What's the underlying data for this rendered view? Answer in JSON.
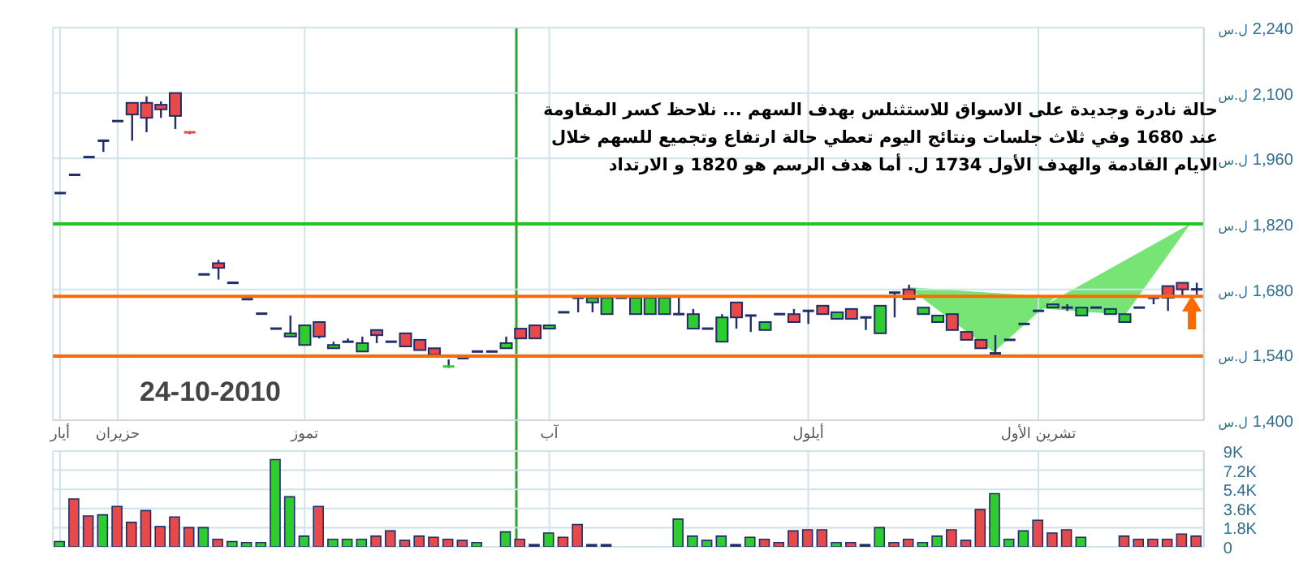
{
  "chart_data": [
    {
      "type": "candlestick",
      "categories": [
        "أيار",
        null,
        null,
        null,
        "حزيران",
        null,
        null,
        null,
        null,
        null,
        null,
        null,
        null,
        null,
        null,
        null,
        null,
        "تموز",
        null,
        null,
        null,
        null,
        null,
        null,
        null,
        null,
        null,
        null,
        null,
        null,
        null,
        null,
        null,
        null,
        "آب",
        null,
        null,
        null,
        null,
        null,
        null,
        null,
        null,
        null,
        null,
        null,
        null,
        null,
        null,
        null,
        null,
        null,
        "أيلول",
        null,
        null,
        null,
        null,
        null,
        null,
        null,
        null,
        null,
        null,
        null,
        null,
        null,
        null,
        null,
        "تشرين الأول",
        null,
        null,
        null,
        null,
        null,
        null,
        null,
        null,
        null,
        null,
        null
      ],
      "ohlc": [
        [
          1886,
          1886,
          1886,
          1886
        ],
        [
          1925,
          1925,
          1925,
          1925
        ],
        [
          1963,
          1963,
          1963,
          1963
        ],
        [
          1998,
          1998,
          1974,
          1998
        ],
        [
          2040,
          2040,
          2040,
          2040
        ],
        [
          2079,
          2079,
          1998,
          2054
        ],
        [
          2079,
          2093,
          2016,
          2047
        ],
        [
          2075,
          2082,
          2047,
          2065
        ],
        [
          2100,
          2100,
          2023,
          2051
        ],
        [
          2016,
          2016,
          2012,
          2012
        ],
        [
          1712,
          1712,
          1712,
          1712
        ],
        [
          1736,
          1743,
          1701,
          1726
        ],
        [
          1694,
          1694,
          1694,
          1694
        ],
        [
          1659,
          1659,
          1659,
          1659
        ],
        [
          1628,
          1628,
          1628,
          1628
        ],
        [
          1596,
          1596,
          1596,
          1596
        ],
        [
          1579,
          1624,
          1579,
          1586
        ],
        [
          1561,
          1603,
          1561,
          1603
        ],
        [
          1610,
          1610,
          1575,
          1579
        ],
        [
          1554,
          1568,
          1554,
          1561
        ],
        [
          1568,
          1575,
          1568,
          1568
        ],
        [
          1547,
          1579,
          1547,
          1565
        ],
        [
          1593,
          1593,
          1565,
          1582
        ],
        [
          1568,
          1568,
          1568,
          1568
        ],
        [
          1586,
          1586,
          1558,
          1558
        ],
        [
          1572,
          1572,
          1550,
          1550
        ],
        [
          1554,
          1554,
          1540,
          1540
        ],
        [
          1512,
          1530,
          1512,
          1515
        ],
        [
          1533,
          1533,
          1533,
          1533
        ],
        [
          1547,
          1547,
          1547,
          1547
        ],
        [
          1547,
          1547,
          1547,
          1547
        ],
        [
          1554,
          1579,
          1554,
          1565
        ],
        [
          1596,
          1596,
          1575,
          1575
        ],
        [
          1603,
          1603,
          1575,
          1575
        ],
        [
          1596,
          1603,
          1596,
          1603
        ],
        [
          1631,
          1631,
          1631,
          1631
        ],
        [
          1662,
          1662,
          1631,
          1662
        ],
        [
          1652,
          1662,
          1631,
          1662
        ],
        [
          1627,
          1662,
          1627,
          1662
        ],
        [
          1662,
          1662,
          1662,
          1662
        ],
        [
          1627,
          1662,
          1627,
          1662
        ],
        [
          1627,
          1662,
          1627,
          1662
        ],
        [
          1627,
          1662,
          1627,
          1662
        ],
        [
          1627,
          1662,
          1627,
          1627
        ],
        [
          1596,
          1638,
          1596,
          1627
        ],
        [
          1596,
          1596,
          1596,
          1596
        ],
        [
          1568,
          1627,
          1568,
          1620
        ],
        [
          1652,
          1652,
          1596,
          1620
        ],
        [
          1624,
          1624,
          1589,
          1624
        ],
        [
          1593,
          1610,
          1593,
          1610
        ],
        [
          1627,
          1627,
          1627,
          1627
        ],
        [
          1627,
          1638,
          1610,
          1610
        ],
        [
          1634,
          1634,
          1606,
          1634
        ],
        [
          1645,
          1645,
          1627,
          1627
        ],
        [
          1617,
          1631,
          1617,
          1631
        ],
        [
          1638,
          1638,
          1617,
          1617
        ],
        [
          1620,
          1620,
          1593,
          1620
        ],
        [
          1586,
          1645,
          1586,
          1645
        ],
        [
          1673,
          1673,
          1620,
          1673
        ],
        [
          1680,
          1690,
          1659,
          1659
        ],
        [
          1627,
          1641,
          1627,
          1641
        ],
        [
          1610,
          1624,
          1610,
          1624
        ],
        [
          1627,
          1627,
          1593,
          1593
        ],
        [
          1589,
          1589,
          1572,
          1572
        ],
        [
          1572,
          1572,
          1554,
          1554
        ],
        [
          1543,
          1582,
          1543,
          1543
        ],
        [
          1572,
          1572,
          1572,
          1572
        ],
        [
          1606,
          1606,
          1606,
          1606
        ],
        [
          1634,
          1634,
          1634,
          1634
        ],
        [
          1641,
          1648,
          1641,
          1648
        ],
        [
          1641,
          1648,
          1634,
          1641
        ],
        [
          1624,
          1641,
          1624,
          1641
        ],
        [
          1641,
          1641,
          1641,
          1641
        ],
        [
          1627,
          1638,
          1627,
          1638
        ],
        [
          1610,
          1627,
          1610,
          1627
        ],
        [
          1641,
          1641,
          1641,
          1641
        ],
        [
          1662,
          1662,
          1648,
          1662
        ],
        [
          1687,
          1687,
          1634,
          1662
        ],
        [
          1694,
          1694,
          1662,
          1680
        ],
        [
          1680,
          1694,
          1669,
          1680
        ]
      ],
      "colors": [
        "#1f2d6b",
        "#1f2d6b",
        "#1f2d6b",
        "#1f2d6b",
        "#1f2d6b",
        "#e84a4a",
        "#e84a4a",
        "#e84a4a",
        "#e84a4a",
        "#e84a4a",
        "#1f2d6b",
        "#e84a4a",
        "#1f2d6b",
        "#1f2d6b",
        "#1f2d6b",
        "#1f2d6b",
        "#2ecc2e",
        "#2ecc2e",
        "#e84a4a",
        "#2ecc2e",
        "#1f2d6b",
        "#2ecc2e",
        "#e84a4a",
        "#1f2d6b",
        "#e84a4a",
        "#e84a4a",
        "#e84a4a",
        "#2ecc2e",
        "#1f2d6b",
        "#1f2d6b",
        "#1f2d6b",
        "#2ecc2e",
        "#e84a4a",
        "#e84a4a",
        "#2ecc2e",
        "#1f2d6b",
        "#1f2d6b",
        "#2ecc2e",
        "#2ecc2e",
        "#1f2d6b",
        "#2ecc2e",
        "#2ecc2e",
        "#2ecc2e",
        "#1f2d6b",
        "#2ecc2e",
        "#1f2d6b",
        "#2ecc2e",
        "#e84a4a",
        "#1f2d6b",
        "#2ecc2e",
        "#1f2d6b",
        "#e84a4a",
        "#1f2d6b",
        "#e84a4a",
        "#2ecc2e",
        "#e84a4a",
        "#1f2d6b",
        "#2ecc2e",
        "#1f2d6b",
        "#e84a4a",
        "#2ecc2e",
        "#2ecc2e",
        "#e84a4a",
        "#e84a4a",
        "#e84a4a",
        "#1f2d6b",
        "#1f2d6b",
        "#1f2d6b",
        "#1f2d6b",
        "#2ecc2e",
        "#1f2d6b",
        "#2ecc2e",
        "#1f2d6b",
        "#2ecc2e",
        "#2ecc2e",
        "#1f2d6b",
        "#1f2d6b",
        "#e84a4a",
        "#e84a4a",
        "#1f2d6b"
      ],
      "ylim": [
        1400,
        2240
      ],
      "yticks": [
        {
          "value": 1400,
          "label": "1,400"
        },
        {
          "value": 1540,
          "label": "1,540"
        },
        {
          "value": 1680,
          "label": "1,680"
        },
        {
          "value": 1820,
          "label": "1,820"
        },
        {
          "value": 1960,
          "label": "1,960"
        },
        {
          "value": 2100,
          "label": "2,100"
        },
        {
          "value": 2240,
          "label": "2,240"
        }
      ],
      "ylabel": "ل.س",
      "grid": true,
      "ref_lines": [
        {
          "axis": "y",
          "value": 1820,
          "color": "#22c422"
        },
        {
          "axis": "y",
          "value": 1665,
          "color": "#ff6a00"
        },
        {
          "axis": "y",
          "value": 1537,
          "color": "#ff6a00"
        }
      ],
      "annotations": [
        "حالة نادرة وجديدة على الاسواق للاستثنلس بهدف السهم ... نلاحظ كسر المقاومة عند 1680 وفي ثلاث جلسات ونتائج اليوم تعطي حالة ارتفاع وتجميع للسهم خلال الايام القادمة والهدف الأول 1734 ل. أما هدف  الرسم هو 1820 و الارتداد",
        "24-10-2010"
      ]
    },
    {
      "type": "bar",
      "categories": [
        null,
        null,
        null,
        null,
        null,
        null,
        null,
        null,
        null,
        null,
        null,
        null,
        null,
        null,
        null,
        null,
        null,
        null,
        null,
        null,
        null,
        null,
        null,
        null,
        null,
        null,
        null,
        null,
        null,
        null,
        null,
        null,
        null,
        null,
        null,
        null,
        null,
        null,
        null,
        null,
        null,
        null,
        null,
        null,
        null,
        null,
        null,
        null,
        null,
        null,
        null,
        null,
        null,
        null,
        null,
        null,
        null,
        null,
        null,
        null,
        null,
        null,
        null,
        null,
        null,
        null,
        null,
        null,
        null,
        null,
        null,
        null,
        null,
        null,
        null,
        null,
        null,
        null,
        null,
        null
      ],
      "values": [
        500,
        4500,
        2900,
        3000,
        3800,
        2300,
        3400,
        1900,
        2800,
        1800,
        1800,
        700,
        500,
        400,
        400,
        8200,
        4700,
        1000,
        3800,
        700,
        700,
        700,
        1000,
        1500,
        600,
        1000,
        900,
        700,
        600,
        400,
        0,
        1400,
        700,
        200,
        1300,
        900,
        2100,
        200,
        200,
        0,
        0,
        0,
        0,
        2600,
        1000,
        600,
        1000,
        200,
        900,
        700,
        400,
        1500,
        1600,
        1600,
        400,
        400,
        200,
        1800,
        400,
        700,
        400,
        1000,
        1600,
        600,
        3500,
        5000,
        700,
        1500,
        2500,
        1300,
        1600,
        900,
        0,
        0,
        1000,
        700,
        700,
        700,
        1200,
        1000
      ],
      "colors": [
        "#2ecc2e",
        "#e84a4a",
        "#e84a4a",
        "#2ecc2e",
        "#e84a4a",
        "#e84a4a",
        "#e84a4a",
        "#e84a4a",
        "#e84a4a",
        "#e84a4a",
        "#2ecc2e",
        "#e84a4a",
        "#2ecc2e",
        "#2ecc2e",
        "#2ecc2e",
        "#2ecc2e",
        "#2ecc2e",
        "#2ecc2e",
        "#e84a4a",
        "#2ecc2e",
        "#2ecc2e",
        "#2ecc2e",
        "#e84a4a",
        "#e84a4a",
        "#e84a4a",
        "#e84a4a",
        "#e84a4a",
        "#e84a4a",
        "#e84a4a",
        "#2ecc2e",
        "#1f2d6b",
        "#2ecc2e",
        "#e84a4a",
        "#1f2d6b",
        "#2ecc2e",
        "#e84a4a",
        "#e84a4a",
        "#1f2d6b",
        "#1f2d6b",
        "#1f2d6b",
        "#1f2d6b",
        "#1f2d6b",
        "#1f2d6b",
        "#2ecc2e",
        "#2ecc2e",
        "#2ecc2e",
        "#2ecc2e",
        "#1f2d6b",
        "#2ecc2e",
        "#e84a4a",
        "#e84a4a",
        "#e84a4a",
        "#e84a4a",
        "#e84a4a",
        "#2ecc2e",
        "#e84a4a",
        "#1f2d6b",
        "#2ecc2e",
        "#e84a4a",
        "#e84a4a",
        "#2ecc2e",
        "#2ecc2e",
        "#e84a4a",
        "#e84a4a",
        "#e84a4a",
        "#2ecc2e",
        "#2ecc2e",
        "#2ecc2e",
        "#e84a4a",
        "#e84a4a",
        "#e84a4a",
        "#2ecc2e",
        "#1f2d6b",
        "#1f2d6b",
        "#e84a4a",
        "#e84a4a",
        "#e84a4a",
        "#e84a4a",
        "#e84a4a",
        "#e84a4a"
      ],
      "ylim": [
        0,
        9000
      ],
      "yticks": [
        0,
        {
          "value": 1800,
          "label": "1.8K"
        },
        {
          "value": 3600,
          "label": "3.6K"
        },
        {
          "value": 5400,
          "label": "5.4K"
        },
        {
          "value": 7200,
          "label": "7.2K"
        },
        {
          "value": 9000,
          "label": "9K"
        }
      ],
      "grid": true,
      "tick_labels": "y"
    }
  ]
}
